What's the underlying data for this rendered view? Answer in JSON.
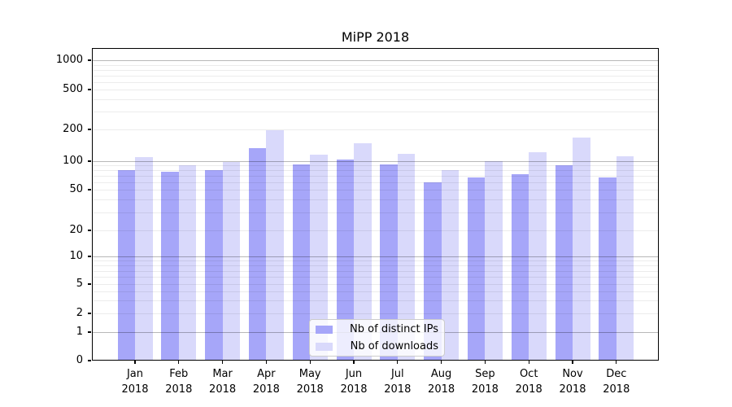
{
  "chart_data": {
    "type": "bar",
    "title": "MiPP 2018",
    "xlabel": "",
    "ylabel": "",
    "scale": "symlog",
    "grid": true,
    "legend_position": "lower center",
    "categories": [
      "Jan 2018",
      "Feb 2018",
      "Mar 2018",
      "Apr 2018",
      "May 2018",
      "Jun 2018",
      "Jul 2018",
      "Aug 2018",
      "Sep 2018",
      "Oct 2018",
      "Nov 2018",
      "Dec 2018"
    ],
    "yticks": [
      0,
      1,
      2,
      5,
      10,
      20,
      50,
      100,
      200,
      500,
      1000
    ],
    "ylim": [
      0,
      1300
    ],
    "series": [
      {
        "name": "Nb of distinct IPs",
        "color": "#a6a6f9",
        "values": [
          80,
          77,
          80,
          132,
          92,
          103,
          92,
          60,
          67,
          73,
          90,
          68
        ]
      },
      {
        "name": "Nb of downloads",
        "color": "#d9d9fb",
        "values": [
          110,
          90,
          98,
          197,
          115,
          148,
          118,
          81,
          100,
          122,
          167,
          112
        ]
      }
    ],
    "colors": {
      "grid_major": "#b8b8b8",
      "grid_minor": "#ececec",
      "axis": "#000000",
      "background": "#ffffff"
    }
  }
}
